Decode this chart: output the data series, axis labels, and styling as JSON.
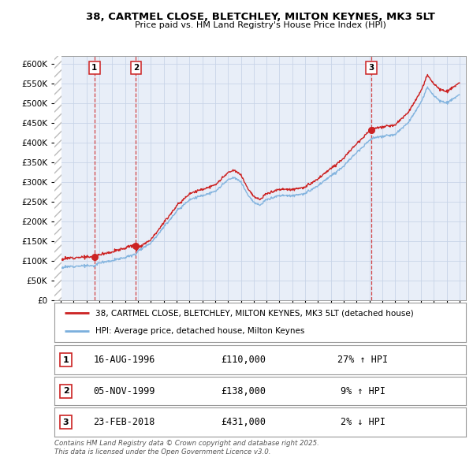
{
  "title1": "38, CARTMEL CLOSE, BLETCHLEY, MILTON KEYNES, MK3 5LT",
  "title2": "Price paid vs. HM Land Registry's House Price Index (HPI)",
  "legend1": "38, CARTMEL CLOSE, BLETCHLEY, MILTON KEYNES, MK3 5LT (detached house)",
  "legend2": "HPI: Average price, detached house, Milton Keynes",
  "sales": [
    {
      "num": 1,
      "date": "16-AUG-1996",
      "price": 110000,
      "year": 1996.62,
      "hpi_pct": "27% ↑ HPI"
    },
    {
      "num": 2,
      "date": "05-NOV-1999",
      "price": 138000,
      "year": 1999.84,
      "hpi_pct": "9% ↑ HPI"
    },
    {
      "num": 3,
      "date": "23-FEB-2018",
      "price": 431000,
      "year": 2018.14,
      "hpi_pct": "2% ↓ HPI"
    }
  ],
  "footer": "Contains HM Land Registry data © Crown copyright and database right 2025.\nThis data is licensed under the Open Government Licence v3.0.",
  "red_color": "#cc2222",
  "blue_color": "#7aafdd",
  "grid_color": "#c8d4e8",
  "bg_color": "#ffffff",
  "plot_bg": "#e8eef8",
  "ylim": [
    0,
    620000
  ],
  "xlim_start": 1993.5,
  "xlim_end": 2025.5
}
